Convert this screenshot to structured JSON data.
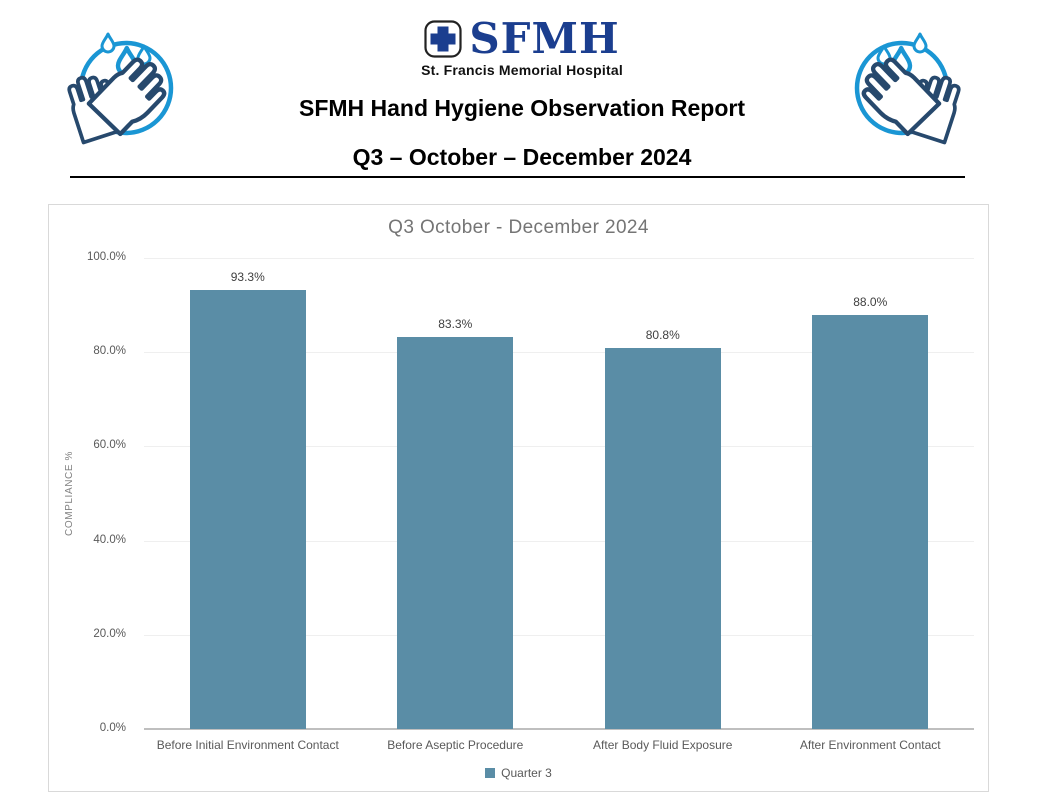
{
  "header": {
    "logo": {
      "abbr": "SFMH",
      "tagline": "St. Francis Memorial Hospital",
      "brand_color": "#1b3e8f",
      "cross_icon": "medical-cross-icon"
    },
    "title": "SFMH Hand Hygiene Observation Report",
    "subtitle": "Q3 – October – December 2024",
    "left_icon": "hand-washing-icon",
    "right_icon": "hand-washing-icon",
    "icon_colors": {
      "circle_and_droplets": "#1a96d4",
      "hands": "#27496d"
    }
  },
  "chart_data": {
    "type": "bar",
    "title": "Q3 October - December 2024",
    "categories": [
      "Before Initial Environment Contact",
      "Before Aseptic Procedure",
      "After Body Fluid Exposure",
      "After Environment Contact"
    ],
    "series": [
      {
        "name": "Quarter 3",
        "values": [
          93.3,
          83.3,
          80.8,
          88.0
        ]
      }
    ],
    "value_labels": [
      "93.3%",
      "83.3%",
      "80.8%",
      "88.0%"
    ],
    "xlabel": "",
    "ylabel": "COMPLIANCE %",
    "ylim": [
      0,
      100
    ],
    "yticks": [
      "0.0%",
      "20.0%",
      "40.0%",
      "60.0%",
      "80.0%",
      "100.0%"
    ],
    "ytick_values": [
      0,
      20,
      40,
      60,
      80,
      100
    ],
    "grid": true,
    "legend_position": "bottom",
    "bar_color": "#5a8da6",
    "gridline_color": "#efefef",
    "axis_color": "#bfbfbf"
  }
}
